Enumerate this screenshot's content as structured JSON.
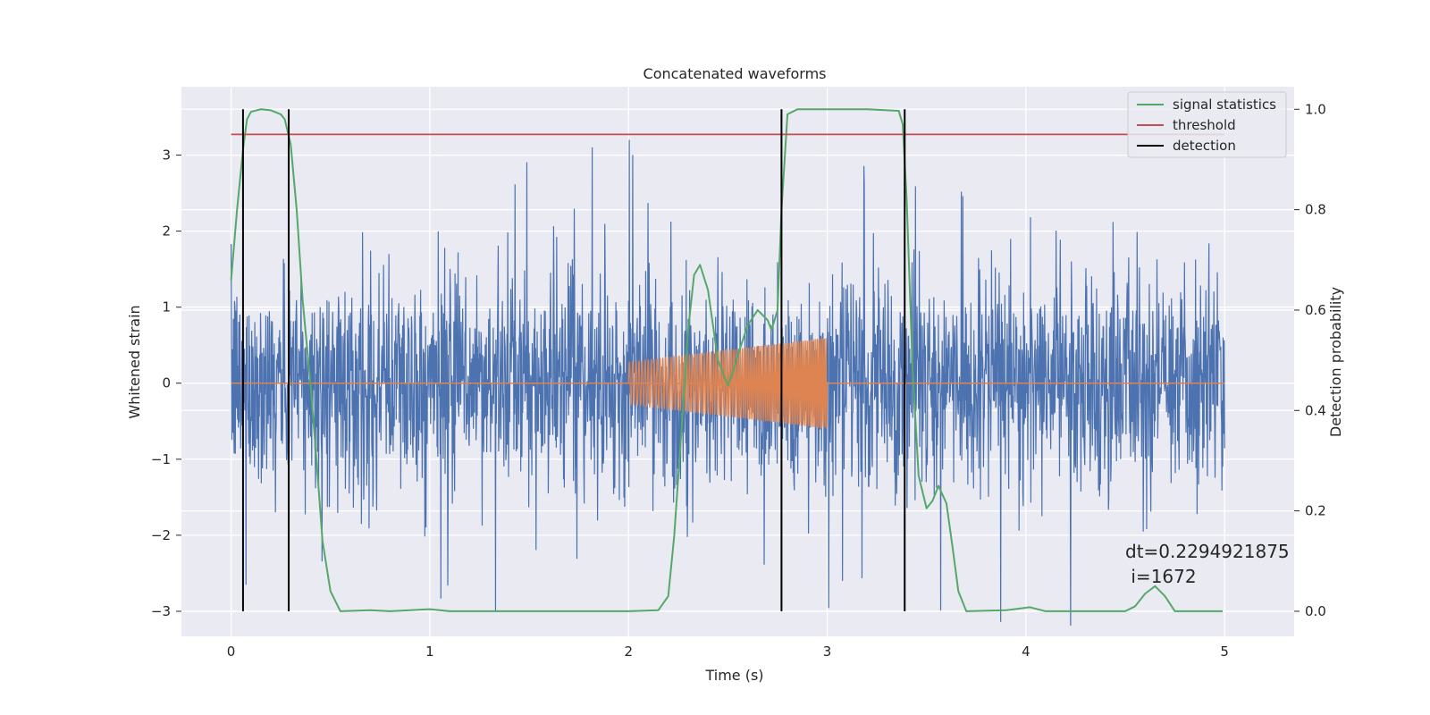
{
  "chart_data": {
    "type": "line",
    "title": "Concatenated waveforms",
    "xlabel": "Time (s)",
    "ylabel_left": "Whitened strain",
    "ylabel_right": "Detection probability",
    "xlim": [
      -0.25,
      5.35
    ],
    "ylim_left": [
      -3.33,
      3.9
    ],
    "ylim_right": [
      -0.05,
      1.045
    ],
    "grid": true,
    "legend_position": "top-right",
    "x_ticks": [
      0,
      1,
      2,
      3,
      4,
      5
    ],
    "x_tick_labels": [
      "0",
      "1",
      "2",
      "3",
      "4",
      "5"
    ],
    "y_left_ticks": [
      -3,
      -2,
      -1,
      0,
      1,
      2,
      3
    ],
    "y_left_tick_labels": [
      "−3",
      "−2",
      "−1",
      "0",
      "1",
      "2",
      "3"
    ],
    "y_right_ticks": [
      0.0,
      0.2,
      0.4,
      0.6,
      0.8,
      1.0
    ],
    "y_right_tick_labels": [
      "0.0",
      "0.2",
      "0.4",
      "0.6",
      "0.8",
      "1.0"
    ],
    "strain_noise": {
      "color": "#4c72b0",
      "x_range": [
        0,
        5
      ],
      "typical_amplitude": 1.2,
      "max_amplitude": 3.2
    },
    "injected_signal": {
      "color": "#dd8452",
      "x_range": [
        2,
        3
      ],
      "start_amplitude": 0.28,
      "end_amplitude": 0.6,
      "baseline": 0
    },
    "series": [
      {
        "name": "signal statistics",
        "color": "#55a868",
        "axis": "right",
        "x": [
          0,
          0.03,
          0.06,
          0.08,
          0.1,
          0.15,
          0.2,
          0.25,
          0.27,
          0.3,
          0.33,
          0.36,
          0.4,
          0.43,
          0.46,
          0.5,
          0.55,
          0.7,
          0.8,
          1.0,
          1.1,
          1.5,
          2.0,
          2.15,
          2.2,
          2.23,
          2.27,
          2.3,
          2.33,
          2.36,
          2.4,
          2.45,
          2.5,
          2.52,
          2.55,
          2.6,
          2.65,
          2.7,
          2.72,
          2.75,
          2.77,
          2.8,
          2.85,
          3.0,
          3.2,
          3.36,
          3.38,
          3.4,
          3.43,
          3.46,
          3.5,
          3.53,
          3.56,
          3.6,
          3.63,
          3.66,
          3.7,
          3.9,
          4.02,
          4.1,
          4.5,
          4.55,
          4.6,
          4.65,
          4.7,
          4.75,
          4.99
        ],
        "y": [
          0.66,
          0.8,
          0.92,
          0.98,
          0.995,
          1.0,
          0.998,
          0.99,
          0.98,
          0.93,
          0.8,
          0.62,
          0.45,
          0.3,
          0.14,
          0.04,
          0.0,
          0.002,
          0.0,
          0.004,
          0.0,
          0.0,
          0.0,
          0.002,
          0.03,
          0.15,
          0.38,
          0.56,
          0.67,
          0.69,
          0.64,
          0.5,
          0.45,
          0.47,
          0.51,
          0.57,
          0.6,
          0.58,
          0.56,
          0.6,
          0.8,
          0.99,
          1.0,
          1.0,
          1.0,
          0.997,
          0.97,
          0.82,
          0.48,
          0.27,
          0.205,
          0.22,
          0.25,
          0.215,
          0.13,
          0.04,
          0.0,
          0.002,
          0.008,
          0.0,
          0.0,
          0.01,
          0.035,
          0.05,
          0.03,
          0.0,
          0.0
        ]
      },
      {
        "name": "threshold",
        "color": "#c44e52",
        "axis": "right",
        "x": [
          0,
          5
        ],
        "y": [
          0.95,
          0.95
        ]
      },
      {
        "name": "detection",
        "color": "#000000",
        "axis": "right",
        "type": "vlines",
        "x": [
          0.06,
          0.29,
          2.77,
          3.39
        ],
        "ymin": 0.0,
        "ymax": 1.0
      }
    ],
    "annotation": {
      "lines": [
        "dt=0.2294921875",
        " i=1672"
      ],
      "x": 4.5,
      "y_right": 0.1
    }
  }
}
